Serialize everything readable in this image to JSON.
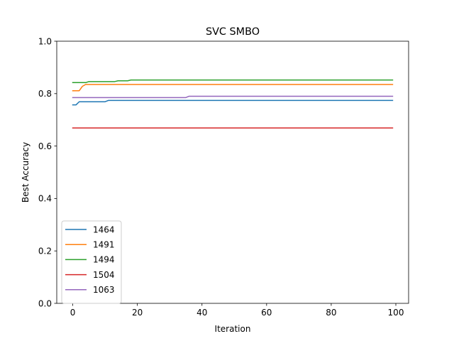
{
  "chart_data": {
    "type": "line",
    "title": "SVC SMBO",
    "xlabel": "Iteration",
    "ylabel": "Best Accuracy",
    "xlim": [
      -4.95,
      103.95
    ],
    "ylim": [
      0.0,
      1.0
    ],
    "xticks": [
      0,
      20,
      40,
      60,
      80,
      100
    ],
    "yticks": [
      0.0,
      0.2,
      0.4,
      0.6,
      0.8,
      1.0
    ],
    "xtick_labels": [
      "0",
      "20",
      "40",
      "60",
      "80",
      "100"
    ],
    "ytick_labels": [
      "0.0",
      "0.2",
      "0.4",
      "0.6",
      "0.8",
      "1.0"
    ],
    "grid": false,
    "legend_position": "lower-left",
    "series": [
      {
        "name": "1464",
        "color": "#1f77b4",
        "points": [
          [
            0,
            0.757
          ],
          [
            1,
            0.757
          ],
          [
            2,
            0.769
          ],
          [
            10,
            0.769
          ],
          [
            11,
            0.774
          ],
          [
            99,
            0.774
          ]
        ]
      },
      {
        "name": "1491",
        "color": "#ff7f0e",
        "points": [
          [
            0,
            0.811
          ],
          [
            2,
            0.811
          ],
          [
            3,
            0.828
          ],
          [
            4,
            0.835
          ],
          [
            99,
            0.835
          ]
        ]
      },
      {
        "name": "1494",
        "color": "#2ca02c",
        "points": [
          [
            0,
            0.842
          ],
          [
            4,
            0.842
          ],
          [
            5,
            0.846
          ],
          [
            13,
            0.846
          ],
          [
            14,
            0.849
          ],
          [
            17,
            0.849
          ],
          [
            18,
            0.852
          ],
          [
            99,
            0.852
          ]
        ]
      },
      {
        "name": "1504",
        "color": "#d62728",
        "points": [
          [
            0,
            0.669
          ],
          [
            99,
            0.669
          ]
        ]
      },
      {
        "name": "1063",
        "color": "#9467bd",
        "points": [
          [
            0,
            0.785
          ],
          [
            35,
            0.785
          ],
          [
            36,
            0.79
          ],
          [
            99,
            0.79
          ]
        ]
      }
    ]
  }
}
